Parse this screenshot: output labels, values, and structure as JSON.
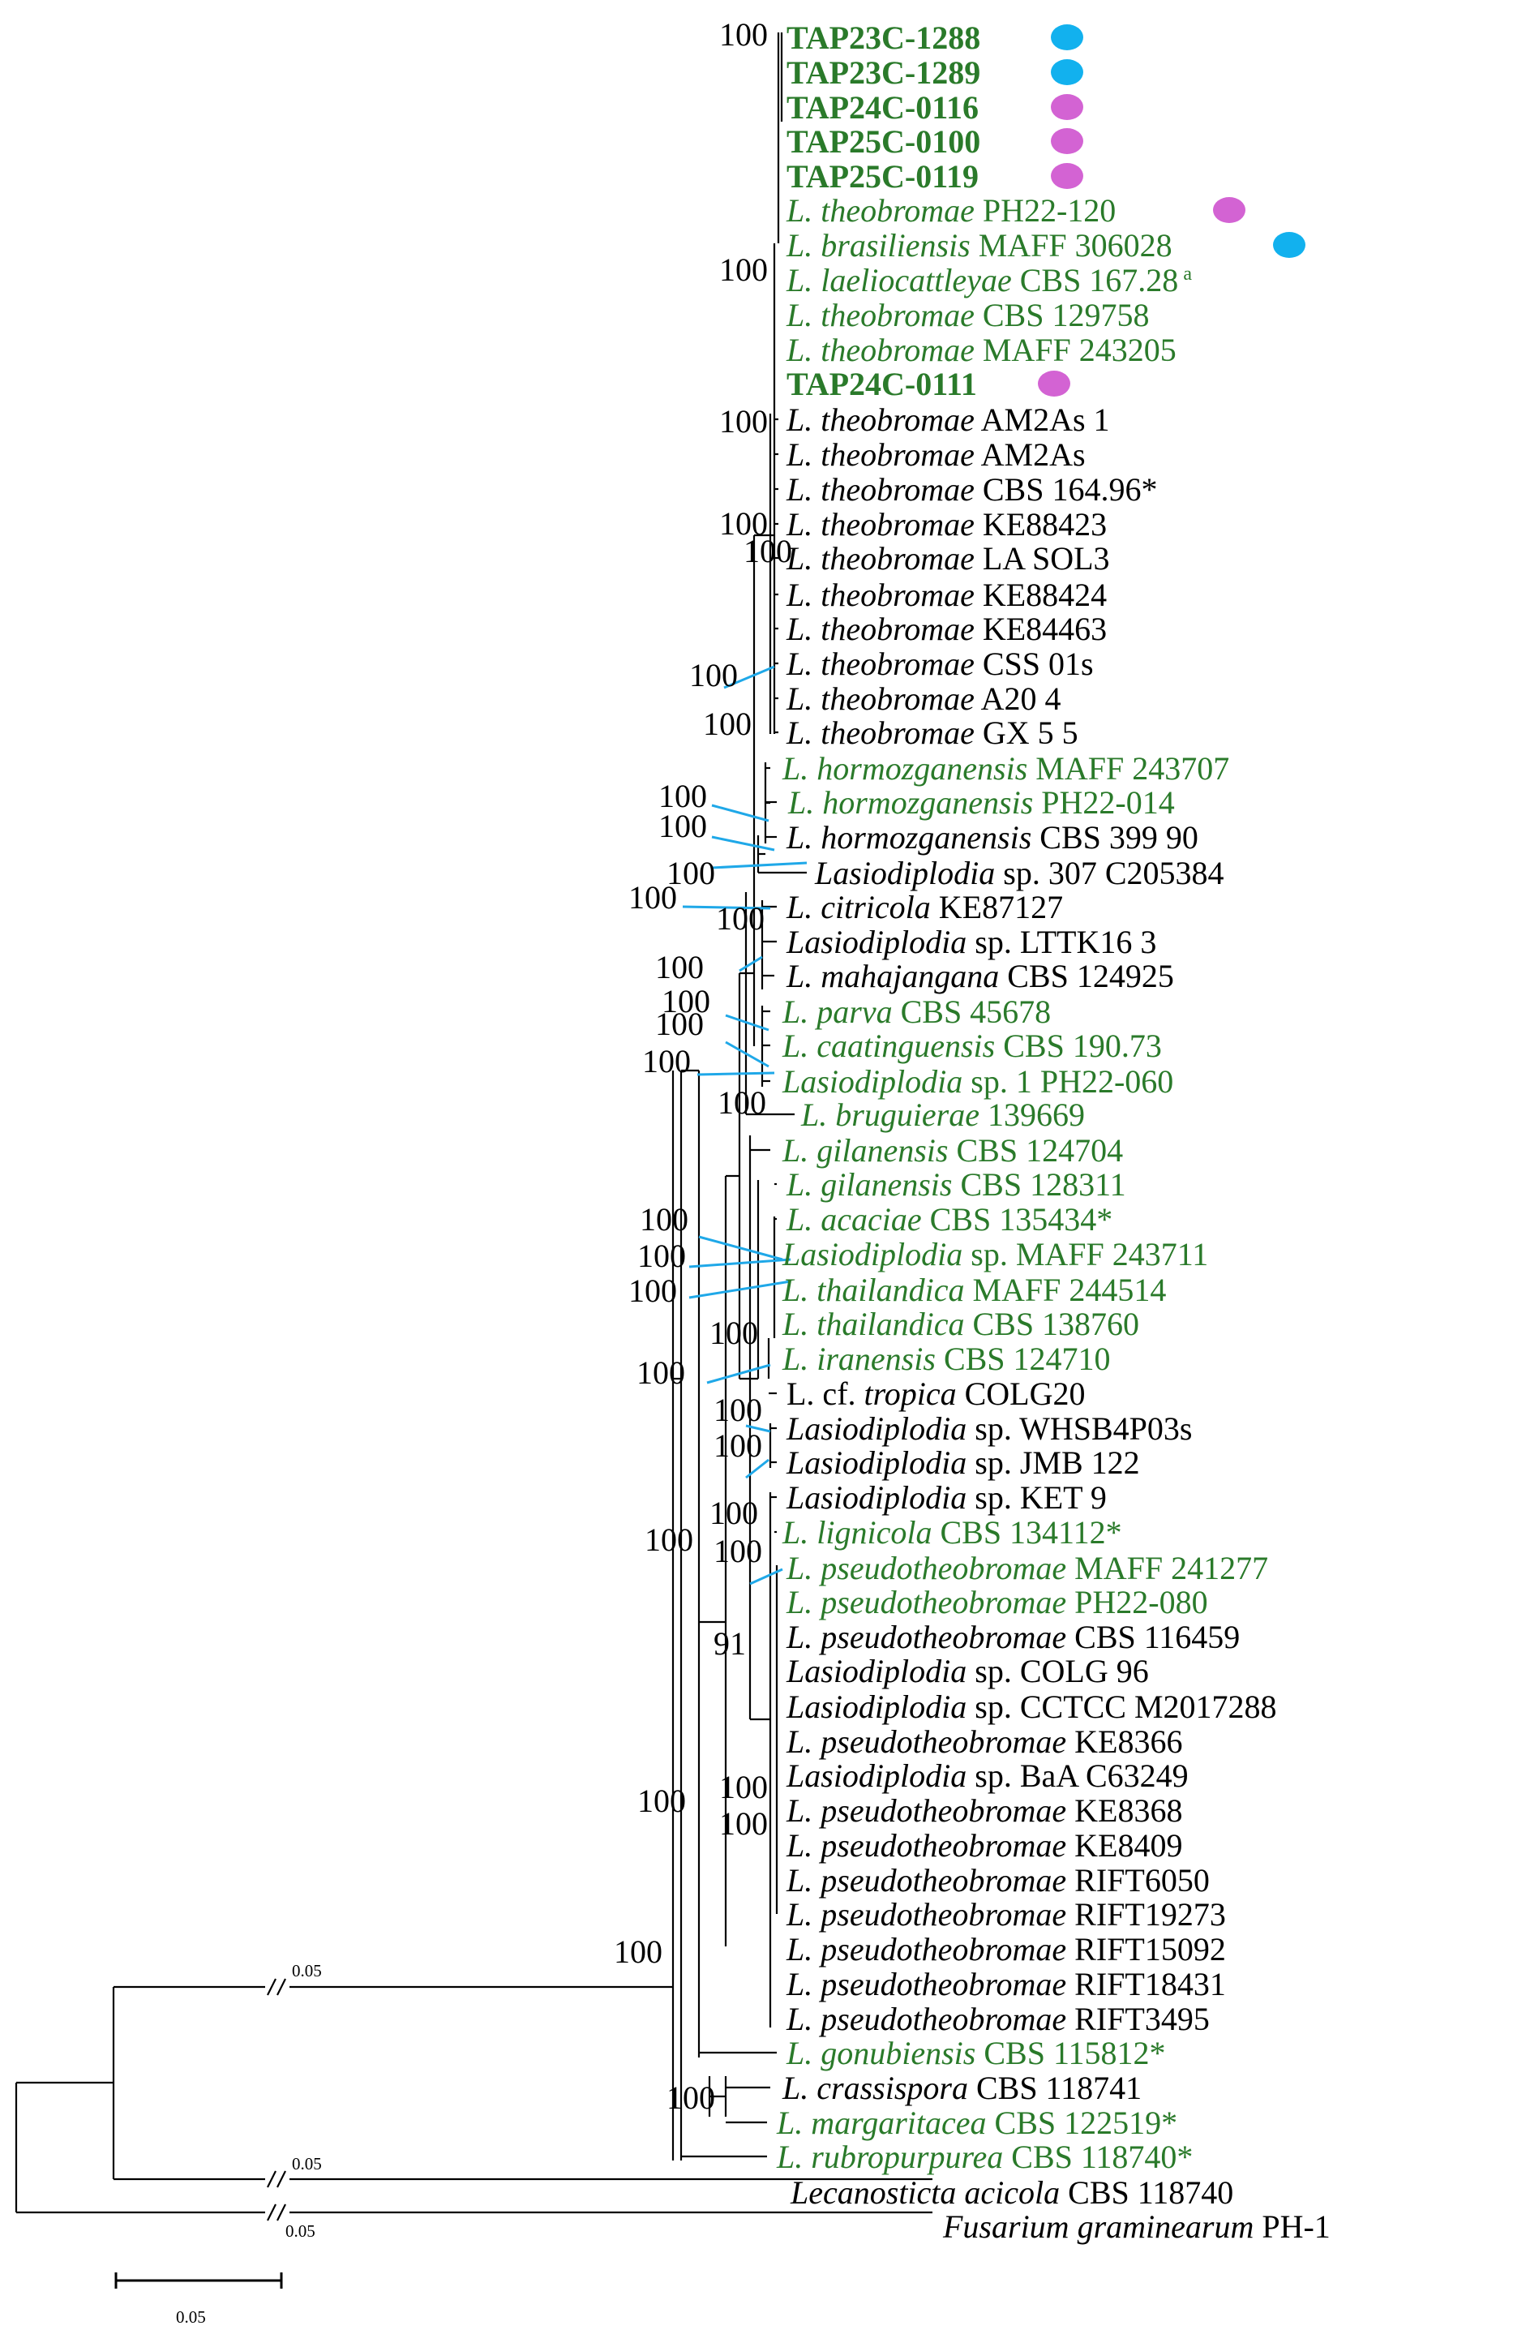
{
  "colors": {
    "highlight": "#2a7a2a",
    "plain": "#000000",
    "blue_dot": "#12b1ee",
    "pink_dot": "#d363d3",
    "leader": "#1fa8e8"
  },
  "taxa": [
    {
      "parts": [
        [
          "b",
          "TAP23C-1288"
        ]
      ],
      "green": true,
      "dot": "blue"
    },
    {
      "parts": [
        [
          "b",
          "TAP23C-1289"
        ]
      ],
      "green": true,
      "dot": "blue"
    },
    {
      "parts": [
        [
          "b",
          "TAP24C-0116"
        ]
      ],
      "green": true,
      "dot": "pink"
    },
    {
      "parts": [
        [
          "b",
          "TAP25C-0100"
        ]
      ],
      "green": true,
      "dot": "pink"
    },
    {
      "parts": [
        [
          "b",
          "TAP25C-0119"
        ]
      ],
      "green": true,
      "dot": "pink"
    },
    {
      "parts": [
        [
          "i",
          "L. theobromae"
        ],
        [
          "n",
          " PH22-120"
        ]
      ],
      "green": true,
      "dot": "pink"
    },
    {
      "parts": [
        [
          "i",
          "L. brasiliensis"
        ],
        [
          "n",
          " MAFF 306028"
        ]
      ],
      "green": true,
      "dot": "blue"
    },
    {
      "parts": [
        [
          "i",
          "L. laeliocattleyae"
        ],
        [
          "n",
          " CBS 167.28"
        ],
        [
          "s",
          "a"
        ]
      ],
      "green": true
    },
    {
      "parts": [
        [
          "i",
          "L. theobromae"
        ],
        [
          "n",
          " CBS 129758"
        ]
      ],
      "green": true
    },
    {
      "parts": [
        [
          "i",
          "L. theobromae"
        ],
        [
          "n",
          " MAFF 243205"
        ]
      ],
      "green": true
    },
    {
      "parts": [
        [
          "b",
          "TAP24C-0111"
        ]
      ],
      "green": true,
      "dot": "pink"
    },
    {
      "parts": [
        [
          "i",
          "L. theobromae"
        ],
        [
          "n",
          " AM2As 1"
        ]
      ]
    },
    {
      "parts": [
        [
          "i",
          "L. theobromae"
        ],
        [
          "n",
          " AM2As"
        ]
      ]
    },
    {
      "parts": [
        [
          "i",
          "L. theobromae"
        ],
        [
          "n",
          " CBS 164.96*"
        ]
      ]
    },
    {
      "parts": [
        [
          "i",
          "L. theobromae"
        ],
        [
          "n",
          " KE88423"
        ]
      ]
    },
    {
      "parts": [
        [
          "i",
          "L. theobromae"
        ],
        [
          "n",
          " LA SOL3"
        ]
      ]
    },
    {
      "parts": [
        [
          "i",
          "L. theobromae"
        ],
        [
          "n",
          " KE88424"
        ]
      ]
    },
    {
      "parts": [
        [
          "i",
          "L. theobromae"
        ],
        [
          "n",
          " KE84463"
        ]
      ]
    },
    {
      "parts": [
        [
          "i",
          "L. theobromae"
        ],
        [
          "n",
          " CSS 01s"
        ]
      ]
    },
    {
      "parts": [
        [
          "i",
          "L. theobromae"
        ],
        [
          "n",
          " A20 4"
        ]
      ]
    },
    {
      "parts": [
        [
          "i",
          "L. theobromae"
        ],
        [
          "n",
          " GX 5 5"
        ]
      ]
    },
    {
      "parts": [
        [
          "i",
          "L. hormozganensis"
        ],
        [
          "n",
          " MAFF 243707"
        ]
      ],
      "green": true
    },
    {
      "parts": [
        [
          "i",
          "L. hormozganensis"
        ],
        [
          "n",
          " PH22-014"
        ]
      ],
      "green": true
    },
    {
      "parts": [
        [
          "i",
          "L. hormozganensis"
        ],
        [
          "n",
          " CBS 399 90"
        ]
      ]
    },
    {
      "parts": [
        [
          "i",
          "Lasiodiplodia"
        ],
        [
          "n",
          " sp. 307 C205384"
        ]
      ]
    },
    {
      "parts": [
        [
          "i",
          "L. citricola"
        ],
        [
          "n",
          " KE87127"
        ]
      ]
    },
    {
      "parts": [
        [
          "i",
          "Lasiodiplodia"
        ],
        [
          "n",
          " sp. LTTK16 3"
        ]
      ]
    },
    {
      "parts": [
        [
          "i",
          "L. mahajangana"
        ],
        [
          "n",
          " CBS 124925"
        ]
      ]
    },
    {
      "parts": [
        [
          "i",
          "L. parva"
        ],
        [
          "n",
          " CBS 45678"
        ]
      ],
      "green": true
    },
    {
      "parts": [
        [
          "i",
          "L. caatinguensis"
        ],
        [
          "n",
          " CBS 190.73"
        ]
      ],
      "green": true
    },
    {
      "parts": [
        [
          "i",
          "Lasiodiplodia"
        ],
        [
          "n",
          " sp. 1 PH22-060"
        ]
      ],
      "green": true
    },
    {
      "parts": [
        [
          "i",
          "L. bruguierae"
        ],
        [
          "n",
          " 139669"
        ]
      ],
      "green": true
    },
    {
      "parts": [
        [
          "i",
          "L. gilanensis"
        ],
        [
          "n",
          " CBS 124704"
        ]
      ],
      "green": true
    },
    {
      "parts": [
        [
          "i",
          "L. gilanensis"
        ],
        [
          "n",
          " CBS 128311"
        ]
      ],
      "green": true
    },
    {
      "parts": [
        [
          "i",
          "L. acaciae"
        ],
        [
          "n",
          " CBS 135434*"
        ]
      ],
      "green": true
    },
    {
      "parts": [
        [
          "i",
          "Lasiodiplodia"
        ],
        [
          "n",
          " sp. MAFF 243711"
        ]
      ],
      "green": true
    },
    {
      "parts": [
        [
          "i",
          "L. thailandica"
        ],
        [
          "n",
          " MAFF 244514"
        ]
      ],
      "green": true
    },
    {
      "parts": [
        [
          "i",
          "L. thailandica"
        ],
        [
          "n",
          " CBS 138760"
        ]
      ],
      "green": true
    },
    {
      "parts": [
        [
          "i",
          "L. iranensis"
        ],
        [
          "n",
          " CBS 124710"
        ]
      ],
      "green": true
    },
    {
      "parts": [
        [
          "n",
          "L. cf. "
        ],
        [
          "i",
          "tropica"
        ],
        [
          "n",
          " COLG20"
        ]
      ]
    },
    {
      "parts": [
        [
          "i",
          "Lasiodiplodia"
        ],
        [
          "n",
          " sp. WHSB4P03s"
        ]
      ]
    },
    {
      "parts": [
        [
          "i",
          "Lasiodiplodia"
        ],
        [
          "n",
          " sp. JMB 122"
        ]
      ]
    },
    {
      "parts": [
        [
          "i",
          "Lasiodiplodia"
        ],
        [
          "n",
          " sp. KET 9"
        ]
      ]
    },
    {
      "parts": [
        [
          "i",
          "L. lignicola"
        ],
        [
          "n",
          " CBS 134112*"
        ]
      ],
      "green": true
    },
    {
      "parts": [
        [
          "i",
          "L. pseudotheobromae"
        ],
        [
          "n",
          " MAFF 241277"
        ]
      ],
      "green": true
    },
    {
      "parts": [
        [
          "i",
          "L. pseudotheobromae"
        ],
        [
          "n",
          " PH22-080"
        ]
      ],
      "green": true
    },
    {
      "parts": [
        [
          "i",
          "L. pseudotheobromae"
        ],
        [
          "n",
          " CBS 116459"
        ]
      ]
    },
    {
      "parts": [
        [
          "i",
          "Lasiodiplodia"
        ],
        [
          "n",
          " sp. COLG 96"
        ]
      ]
    },
    {
      "parts": [
        [
          "i",
          "Lasiodiplodia"
        ],
        [
          "n",
          " sp. CCTCC M2017288"
        ]
      ]
    },
    {
      "parts": [
        [
          "i",
          "L. pseudotheobromae"
        ],
        [
          "n",
          " KE8366"
        ]
      ]
    },
    {
      "parts": [
        [
          "i",
          "Lasiodiplodia"
        ],
        [
          "n",
          " sp. BaA C63249"
        ]
      ]
    },
    {
      "parts": [
        [
          "i",
          "L. pseudotheobromae"
        ],
        [
          "n",
          " KE8368"
        ]
      ]
    },
    {
      "parts": [
        [
          "i",
          "L. pseudotheobromae"
        ],
        [
          "n",
          " KE8409"
        ]
      ]
    },
    {
      "parts": [
        [
          "i",
          "L. pseudotheobromae"
        ],
        [
          "n",
          " RIFT6050"
        ]
      ]
    },
    {
      "parts": [
        [
          "i",
          "L. pseudotheobromae"
        ],
        [
          "n",
          " RIFT19273"
        ]
      ]
    },
    {
      "parts": [
        [
          "i",
          "L. pseudotheobromae"
        ],
        [
          "n",
          " RIFT15092"
        ]
      ]
    },
    {
      "parts": [
        [
          "i",
          "L. pseudotheobromae"
        ],
        [
          "n",
          " RIFT18431"
        ]
      ]
    },
    {
      "parts": [
        [
          "i",
          "L. pseudotheobromae"
        ],
        [
          "n",
          " RIFT3495"
        ]
      ]
    },
    {
      "parts": [
        [
          "i",
          "L. gonubiensis"
        ],
        [
          "n",
          " CBS 115812*"
        ]
      ],
      "green": true
    },
    {
      "parts": [
        [
          "i",
          "L. crassispora"
        ],
        [
          "n",
          " CBS 118741"
        ]
      ]
    },
    {
      "parts": [
        [
          "i",
          "L. margaritacea"
        ],
        [
          "n",
          " CBS 122519*"
        ]
      ],
      "green": true
    },
    {
      "parts": [
        [
          "i",
          "L. rubropurpurea"
        ],
        [
          "n",
          " CBS 118740*"
        ]
      ],
      "green": true
    },
    {
      "parts": [
        [
          "i",
          "Lecanosticta acicola"
        ],
        [
          "n",
          " CBS 118740"
        ]
      ]
    },
    {
      "parts": [
        [
          "i",
          "Fusarium graminearum"
        ],
        [
          "n",
          " PH-1"
        ]
      ]
    }
  ],
  "supports": [
    {
      "label": "100"
    },
    {
      "label": "100"
    },
    {
      "label": "100"
    },
    {
      "label": "100"
    },
    {
      "label": "100"
    },
    {
      "label": "100"
    },
    {
      "label": "100"
    },
    {
      "label": "100"
    },
    {
      "label": "100"
    },
    {
      "label": "100"
    },
    {
      "label": "100"
    },
    {
      "label": "100"
    },
    {
      "label": "100"
    },
    {
      "label": "100"
    },
    {
      "label": "100"
    },
    {
      "label": "100"
    },
    {
      "label": "100"
    },
    {
      "label": "100"
    },
    {
      "label": "100"
    },
    {
      "label": "100"
    },
    {
      "label": "100"
    },
    {
      "label": "100"
    },
    {
      "label": "100"
    },
    {
      "label": "100"
    },
    {
      "label": "100"
    },
    {
      "label": "100"
    },
    {
      "label": "91"
    },
    {
      "label": "100"
    },
    {
      "label": "100"
    },
    {
      "label": "100"
    },
    {
      "label": "100"
    },
    {
      "label": "100"
    },
    {
      "label": "100"
    }
  ],
  "break_labels": [
    "0.05",
    "0.05",
    "0.05"
  ],
  "scale_label": "0.05"
}
